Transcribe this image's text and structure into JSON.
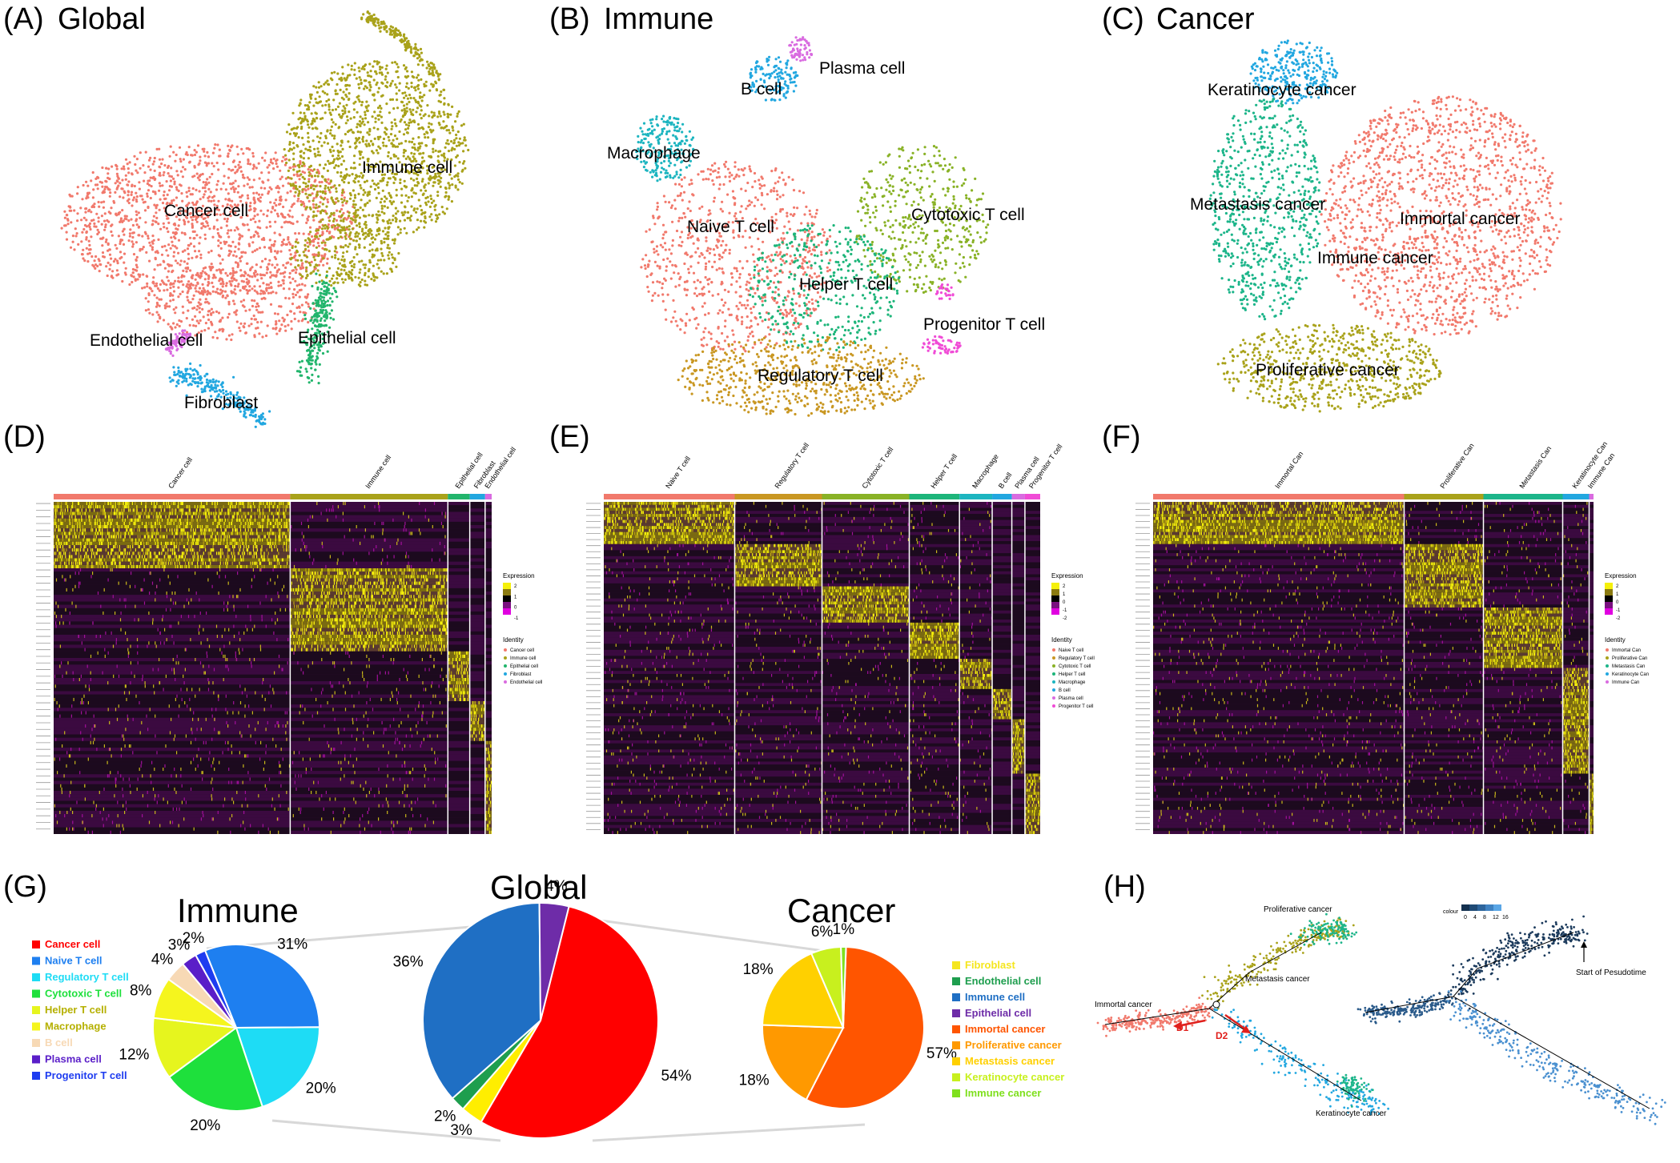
{
  "panels": {
    "A": {
      "letter": "(A)",
      "title": "Global",
      "clusters": [
        {
          "label": "Cancer cell",
          "color": "#F1796C"
        },
        {
          "label": "Immune cell",
          "color": "#A9A21A"
        },
        {
          "label": "Epithelial cell",
          "color": "#22B56C"
        },
        {
          "label": "Fibroblast",
          "color": "#22A7E0"
        },
        {
          "label": "Endothelial cell",
          "color": "#D96BE0"
        }
      ]
    },
    "B": {
      "letter": "(B)",
      "title": "Immune",
      "clusters": [
        {
          "label": "Plasma cell",
          "color": "#D96BE0"
        },
        {
          "label": "B cell",
          "color": "#22A7E0"
        },
        {
          "label": "Macrophage",
          "color": "#1DB5C0"
        },
        {
          "label": "Naive T cell",
          "color": "#F1796C"
        },
        {
          "label": "Cytotoxic T cell",
          "color": "#89B226"
        },
        {
          "label": "Helper T cell",
          "color": "#1DB57A"
        },
        {
          "label": "Progenitor T cell",
          "color": "#F04BD6"
        },
        {
          "label": "Regulatory T cell",
          "color": "#C99722"
        }
      ]
    },
    "C": {
      "letter": "(C)",
      "title": "Cancer",
      "clusters": [
        {
          "label": "Keratinocyte cancer",
          "color": "#22A7E0"
        },
        {
          "label": "Metastasis cancer",
          "color": "#1DB58A"
        },
        {
          "label": "Immortal cancer",
          "color": "#F1796C"
        },
        {
          "label": "Immune cancer",
          "color": "#F1796C"
        },
        {
          "label": "Proliferative cancer",
          "color": "#A9A21A"
        }
      ]
    },
    "D": {
      "letter": "(D)",
      "columns": [
        "Cancer cell",
        "Immune cell",
        "Epithelial cell",
        "Fibroblast",
        "Endothelial cell"
      ],
      "column_colors": [
        "#F1796C",
        "#A9A21A",
        "#22B56C",
        "#22A7E0",
        "#D96BE0"
      ],
      "legend_title": "Expression",
      "identity_title": "Identity",
      "scale_ticks": [
        "2",
        "1",
        "0",
        "-1"
      ],
      "identity_items": [
        "Cancer cell",
        "Immune cell",
        "Epithelial cell",
        "Fibroblast",
        "Endothelial cell"
      ]
    },
    "E": {
      "letter": "(E)",
      "columns": [
        "Naive T cell",
        "Regulatory T cell",
        "Cytotoxic T cell",
        "Helper T cell",
        "Macrophage",
        "B cell",
        "Plasma cell",
        "Progenitor T cell"
      ],
      "column_colors": [
        "#F1796C",
        "#C99722",
        "#89B226",
        "#1DB57A",
        "#1DB5C0",
        "#22A7E0",
        "#D96BE0",
        "#F04BD6"
      ],
      "legend_title": "Expression",
      "identity_title": "Identity",
      "scale_ticks": [
        "2",
        "1",
        "0",
        "-1",
        "-2"
      ],
      "identity_items": [
        "Naive T cell",
        "Regulatory T cell",
        "Cytotoxic T cell",
        "Helper T cell",
        "Macrophage",
        "B cell",
        "Plasma cell",
        "Progenitor T cell"
      ]
    },
    "F": {
      "letter": "(F)",
      "columns": [
        "Immortal Can",
        "Proliferative Can",
        "Metastasis Can",
        "Keratinocyte Can",
        "Immune Can"
      ],
      "column_colors": [
        "#F1796C",
        "#A9A21A",
        "#1DB58A",
        "#22A7E0",
        "#D96BE0"
      ],
      "legend_title": "Expression",
      "identity_title": "Identity",
      "scale_ticks": [
        "2",
        "1",
        "0",
        "-1",
        "-2"
      ],
      "identity_items": [
        "Immortal Can",
        "Proliferative Can",
        "Metastasis Can",
        "Keratinocyte Can",
        "Immune Can"
      ]
    },
    "G": {
      "letter": "(G)"
    },
    "H": {
      "letter": "(H)",
      "labels": {
        "proliferative": "Proliferative cancer",
        "metastasis": "Metastasis cancer",
        "immortal": "Immortal cancer",
        "keratinocyte": "Keratinocyte cancer",
        "d1": "D1",
        "d2": "D2",
        "start": "Start of Pesudotime",
        "colour": "colour"
      },
      "colorbar_ticks": [
        "0",
        "4",
        "8",
        "12",
        "16"
      ]
    }
  },
  "chart_data": [
    {
      "type": "pie",
      "title": "Global",
      "slices": [
        {
          "label": "Cancer cell",
          "value": 54,
          "color": "#FF0000"
        },
        {
          "label": "Epithelial cell",
          "value": 3,
          "color": "#FFEE00"
        },
        {
          "label": "Fibroblast",
          "value": 2,
          "color": "#1E9E4E"
        },
        {
          "label": "Immune cell",
          "value": 36,
          "color": "#1F6FC4"
        },
        {
          "label": "Endothelial cell",
          "value": 4,
          "color": "#6E2CA8"
        }
      ]
    },
    {
      "type": "pie",
      "title": "Immune",
      "legend": [
        {
          "label": "Cancer cell",
          "color": "#FF0000"
        },
        {
          "label": "Naive T cell",
          "color": "#1E7FF0"
        },
        {
          "label": "Regulatory T cell",
          "color": "#1EDCF5"
        },
        {
          "label": "Cytotoxic T cell",
          "color": "#1EE03C"
        },
        {
          "label": "Helper T cell",
          "color": "#E6F51E"
        },
        {
          "label": "Macrophage",
          "color": "#F5F51E"
        },
        {
          "label": "B cell",
          "color": "#F7D9B5"
        },
        {
          "label": "Plasma cell",
          "color": "#5A1EC8"
        },
        {
          "label": "Progenitor T cell",
          "color": "#1E3CF0"
        }
      ],
      "slices": [
        {
          "label": "Naive T cell",
          "value": 31,
          "color": "#1E7FF0"
        },
        {
          "label": "Regulatory T cell",
          "value": 20,
          "color": "#1EDCF5"
        },
        {
          "label": "Cytotoxic T cell",
          "value": 20,
          "color": "#1EE03C"
        },
        {
          "label": "Helper T cell",
          "value": 12,
          "color": "#E6F51E"
        },
        {
          "label": "Macrophage",
          "value": 8,
          "color": "#F5F51E"
        },
        {
          "label": "B cell",
          "value": 4,
          "color": "#F7D9B5"
        },
        {
          "label": "Plasma cell",
          "value": 3,
          "color": "#5A1EC8"
        },
        {
          "label": "Progenitor T cell",
          "value": 2,
          "color": "#1E3CF0"
        }
      ]
    },
    {
      "type": "pie",
      "title": "Cancer",
      "legend": [
        {
          "label": "Fibroblast",
          "color": "#F5E61E"
        },
        {
          "label": "Endothelial cell",
          "color": "#1E9E4E"
        },
        {
          "label": "Immune cell",
          "color": "#1F6FC4"
        },
        {
          "label": "Epithelial cell",
          "color": "#6E2CA8"
        },
        {
          "label": "Immortal cancer",
          "color": "#FF5500"
        },
        {
          "label": "Proliferative cancer",
          "color": "#FF9900"
        },
        {
          "label": "Metastasis cancer",
          "color": "#FFD000"
        },
        {
          "label": "Keratinocyte cancer",
          "color": "#C8F01E"
        },
        {
          "label": "Immune cancer",
          "color": "#7FE01E"
        }
      ],
      "slices": [
        {
          "label": "Immortal cancer",
          "value": 57,
          "color": "#FF5500"
        },
        {
          "label": "Proliferative cancer",
          "value": 18,
          "color": "#FF9900"
        },
        {
          "label": "Metastasis cancer",
          "value": 18,
          "color": "#FFD000"
        },
        {
          "label": "Keratinocyte cancer",
          "value": 6,
          "color": "#C8F01E"
        },
        {
          "label": "Immune cancer",
          "value": 1,
          "color": "#7FE01E"
        }
      ]
    }
  ]
}
